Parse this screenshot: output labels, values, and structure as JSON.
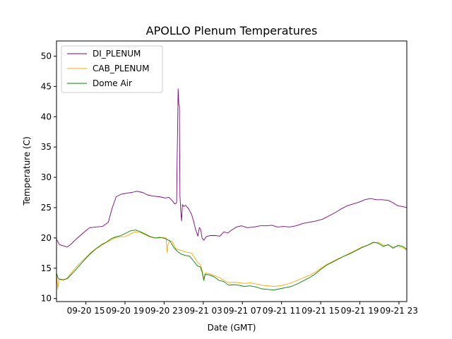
{
  "chart_data": {
    "type": "line",
    "title": "APOLLO Plenum Temperatures",
    "xlabel": "Date (GMT)",
    "ylabel": "Temperature (C)",
    "x_units": "hours since 09-20 12:00 GMT",
    "xlim": [
      0,
      35.8
    ],
    "ylim": [
      9.5,
      52.5
    ],
    "yticks": [
      10,
      15,
      20,
      25,
      30,
      35,
      40,
      45,
      50
    ],
    "xticks": [
      {
        "x": 3,
        "label": "09-20 15"
      },
      {
        "x": 7,
        "label": "09-20 19"
      },
      {
        "x": 11,
        "label": "09-20 23"
      },
      {
        "x": 15,
        "label": "09-21 03"
      },
      {
        "x": 19,
        "label": "09-21 07"
      },
      {
        "x": 23,
        "label": "09-21 11"
      },
      {
        "x": 27,
        "label": "09-21 15"
      },
      {
        "x": 31,
        "label": "09-21 19"
      },
      {
        "x": 35,
        "label": "09-21 23"
      }
    ],
    "legend": {
      "position": "top-left"
    },
    "series": [
      {
        "name": "DI_PLENUM",
        "color": "#800080",
        "points": [
          [
            0,
            19.8
          ],
          [
            0.3,
            18.9
          ],
          [
            0.7,
            18.7
          ],
          [
            1.1,
            18.5
          ],
          [
            1.5,
            19.0
          ],
          [
            2,
            19.8
          ],
          [
            2.5,
            20.5
          ],
          [
            3,
            21.2
          ],
          [
            3.4,
            21.7
          ],
          [
            4,
            21.8
          ],
          [
            4.7,
            21.9
          ],
          [
            5.3,
            22.6
          ],
          [
            5.7,
            25.0
          ],
          [
            6.1,
            26.8
          ],
          [
            6.6,
            27.2
          ],
          [
            7.2,
            27.4
          ],
          [
            7.7,
            27.5
          ],
          [
            8.2,
            27.7
          ],
          [
            8.8,
            27.5
          ],
          [
            9.3,
            27.1
          ],
          [
            9.9,
            26.9
          ],
          [
            10.5,
            26.8
          ],
          [
            11.1,
            26.6
          ],
          [
            11.5,
            26.7
          ],
          [
            11.8,
            26.2
          ],
          [
            12.1,
            25.6
          ],
          [
            12.28,
            25.8
          ],
          [
            12.33,
            33.0
          ],
          [
            12.38,
            38.0
          ],
          [
            12.43,
            44.6
          ],
          [
            12.5,
            42.0
          ],
          [
            12.56,
            41.8
          ],
          [
            12.62,
            27.0
          ],
          [
            12.7,
            24.3
          ],
          [
            12.78,
            22.8
          ],
          [
            12.86,
            25.5
          ],
          [
            13.0,
            25.2
          ],
          [
            13.2,
            25.4
          ],
          [
            13.5,
            24.8
          ],
          [
            13.8,
            23.9
          ],
          [
            14.0,
            22.8
          ],
          [
            14.2,
            21.5
          ],
          [
            14.45,
            20.3
          ],
          [
            14.6,
            21.7
          ],
          [
            14.72,
            21.5
          ],
          [
            14.88,
            20.0
          ],
          [
            15.05,
            19.6
          ],
          [
            15.3,
            20.2
          ],
          [
            15.7,
            20.4
          ],
          [
            16.2,
            20.4
          ],
          [
            16.7,
            20.3
          ],
          [
            17.1,
            21.0
          ],
          [
            17.5,
            20.8
          ],
          [
            17.9,
            21.3
          ],
          [
            18.4,
            21.8
          ],
          [
            18.9,
            22.0
          ],
          [
            19.5,
            21.7
          ],
          [
            20.2,
            21.8
          ],
          [
            20.8,
            22.0
          ],
          [
            21.5,
            22.0
          ],
          [
            22.0,
            22.1
          ],
          [
            22.6,
            21.8
          ],
          [
            23.2,
            21.9
          ],
          [
            23.8,
            21.8
          ],
          [
            24.5,
            22.0
          ],
          [
            25.2,
            22.4
          ],
          [
            25.9,
            22.6
          ],
          [
            26.5,
            22.8
          ],
          [
            27.2,
            23.1
          ],
          [
            27.8,
            23.6
          ],
          [
            28.5,
            24.2
          ],
          [
            29.1,
            24.8
          ],
          [
            29.7,
            25.3
          ],
          [
            30.3,
            25.6
          ],
          [
            30.9,
            25.9
          ],
          [
            31.5,
            26.3
          ],
          [
            32.1,
            26.5
          ],
          [
            32.7,
            26.3
          ],
          [
            33.3,
            26.3
          ],
          [
            33.9,
            26.2
          ],
          [
            34.4,
            25.8
          ],
          [
            34.9,
            25.3
          ],
          [
            35.3,
            25.2
          ],
          [
            35.8,
            25.0
          ]
        ]
      },
      {
        "name": "CAB_PLENUM",
        "color": "#ffa500",
        "points": [
          [
            0,
            14.0
          ],
          [
            0.12,
            11.6
          ],
          [
            0.25,
            13.2
          ],
          [
            0.6,
            13.0
          ],
          [
            1.0,
            13.2
          ],
          [
            1.5,
            14.2
          ],
          [
            2,
            15.2
          ],
          [
            2.5,
            16.0
          ],
          [
            3,
            16.8
          ],
          [
            3.5,
            17.6
          ],
          [
            4,
            18.2
          ],
          [
            4.5,
            18.6
          ],
          [
            5,
            19.2
          ],
          [
            5.5,
            19.6
          ],
          [
            6,
            20.0
          ],
          [
            6.5,
            20.2
          ],
          [
            7,
            20.2
          ],
          [
            7.5,
            20.6
          ],
          [
            8,
            21.0
          ],
          [
            8.5,
            20.9
          ],
          [
            9,
            20.6
          ],
          [
            9.5,
            20.2
          ],
          [
            10,
            20.0
          ],
          [
            10.5,
            20.0
          ],
          [
            11,
            20.1
          ],
          [
            11.2,
            20.0
          ],
          [
            11.3,
            17.6
          ],
          [
            11.4,
            19.0
          ],
          [
            11.55,
            19.4
          ],
          [
            11.8,
            19.5
          ],
          [
            12.2,
            18.2
          ],
          [
            12.6,
            18.0
          ],
          [
            13.0,
            17.8
          ],
          [
            13.4,
            17.6
          ],
          [
            13.8,
            17.5
          ],
          [
            14.1,
            16.8
          ],
          [
            14.4,
            16.0
          ],
          [
            14.7,
            15.6
          ],
          [
            14.9,
            14.6
          ],
          [
            15.05,
            13.2
          ],
          [
            15.2,
            14.2
          ],
          [
            15.6,
            14.1
          ],
          [
            16.1,
            13.8
          ],
          [
            16.6,
            13.5
          ],
          [
            17.1,
            13.0
          ],
          [
            17.6,
            12.6
          ],
          [
            18.1,
            12.7
          ],
          [
            18.6,
            12.6
          ],
          [
            19.2,
            12.5
          ],
          [
            19.8,
            12.6
          ],
          [
            20.4,
            12.4
          ],
          [
            21.0,
            12.2
          ],
          [
            21.6,
            12.1
          ],
          [
            22.2,
            12.0
          ],
          [
            22.8,
            12.1
          ],
          [
            23.4,
            12.3
          ],
          [
            24.0,
            12.6
          ],
          [
            24.6,
            13.0
          ],
          [
            25.2,
            13.4
          ],
          [
            25.8,
            13.8
          ],
          [
            26.4,
            14.3
          ],
          [
            27.0,
            15.0
          ],
          [
            27.6,
            15.6
          ],
          [
            28.2,
            16.1
          ],
          [
            28.8,
            16.6
          ],
          [
            29.4,
            17.0
          ],
          [
            30.0,
            17.5
          ],
          [
            30.6,
            18.0
          ],
          [
            31.2,
            18.5
          ],
          [
            31.8,
            18.8
          ],
          [
            32.4,
            19.2
          ],
          [
            32.9,
            19.3
          ],
          [
            33.4,
            18.8
          ],
          [
            33.9,
            18.8
          ],
          [
            34.4,
            18.5
          ],
          [
            34.9,
            18.6
          ],
          [
            35.4,
            18.4
          ],
          [
            35.8,
            18.0
          ]
        ]
      },
      {
        "name": "Dome Air",
        "color": "#008000",
        "points": [
          [
            0,
            14.2
          ],
          [
            0.15,
            13.4
          ],
          [
            0.3,
            13.2
          ],
          [
            0.7,
            13.1
          ],
          [
            1.1,
            13.3
          ],
          [
            1.6,
            14.1
          ],
          [
            2.1,
            15.0
          ],
          [
            2.6,
            15.9
          ],
          [
            3.1,
            16.8
          ],
          [
            3.6,
            17.6
          ],
          [
            4.1,
            18.3
          ],
          [
            4.6,
            18.9
          ],
          [
            5.1,
            19.3
          ],
          [
            5.6,
            19.9
          ],
          [
            6.1,
            20.2
          ],
          [
            6.6,
            20.4
          ],
          [
            7.1,
            20.8
          ],
          [
            7.6,
            21.2
          ],
          [
            8.1,
            21.3
          ],
          [
            8.6,
            21.0
          ],
          [
            9.1,
            20.6
          ],
          [
            9.6,
            20.2
          ],
          [
            10.1,
            20.0
          ],
          [
            10.6,
            20.1
          ],
          [
            11.1,
            19.9
          ],
          [
            11.6,
            19.5
          ],
          [
            12.0,
            18.4
          ],
          [
            12.4,
            17.7
          ],
          [
            12.8,
            17.3
          ],
          [
            13.2,
            17.1
          ],
          [
            13.6,
            17.0
          ],
          [
            14.0,
            16.2
          ],
          [
            14.4,
            15.4
          ],
          [
            14.7,
            15.2
          ],
          [
            14.9,
            14.3
          ],
          [
            15.05,
            13.0
          ],
          [
            15.2,
            14.0
          ],
          [
            15.6,
            13.9
          ],
          [
            16.1,
            13.6
          ],
          [
            16.6,
            13.0
          ],
          [
            17.1,
            12.8
          ],
          [
            17.6,
            12.2
          ],
          [
            18.1,
            12.3
          ],
          [
            18.6,
            12.2
          ],
          [
            19.2,
            12.0
          ],
          [
            19.8,
            12.1
          ],
          [
            20.4,
            11.9
          ],
          [
            21.0,
            11.6
          ],
          [
            21.6,
            11.5
          ],
          [
            22.2,
            11.4
          ],
          [
            22.8,
            11.6
          ],
          [
            23.4,
            11.8
          ],
          [
            24.0,
            12.0
          ],
          [
            24.6,
            12.4
          ],
          [
            25.2,
            12.9
          ],
          [
            25.8,
            13.4
          ],
          [
            26.4,
            14.0
          ],
          [
            27.0,
            14.8
          ],
          [
            27.6,
            15.5
          ],
          [
            28.2,
            16.0
          ],
          [
            28.8,
            16.5
          ],
          [
            29.4,
            17.0
          ],
          [
            30.0,
            17.4
          ],
          [
            30.6,
            17.9
          ],
          [
            31.2,
            18.4
          ],
          [
            31.8,
            18.8
          ],
          [
            32.4,
            19.3
          ],
          [
            32.9,
            19.1
          ],
          [
            33.4,
            18.6
          ],
          [
            33.9,
            18.9
          ],
          [
            34.4,
            18.3
          ],
          [
            34.9,
            18.8
          ],
          [
            35.4,
            18.6
          ],
          [
            35.8,
            18.1
          ]
        ]
      }
    ]
  }
}
